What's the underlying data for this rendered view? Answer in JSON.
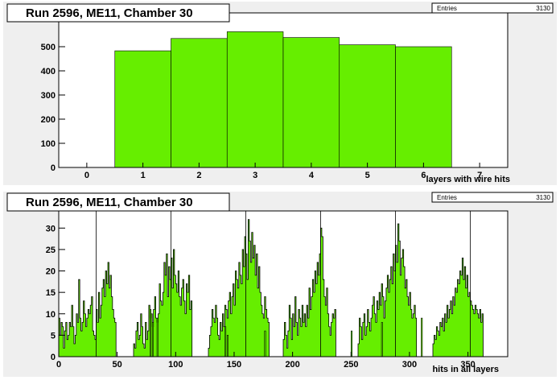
{
  "chart_data": [
    {
      "id": "top",
      "type": "bar",
      "title": "Run 2596, ME11, Chamber 30",
      "stats_label": "Entries",
      "stats_value": "3130",
      "xlabel": "layers with wire hits",
      "ylabel": "",
      "xlim": [
        -0.5,
        7.5
      ],
      "ylim": [
        0,
        640
      ],
      "xticks": [
        0,
        1,
        2,
        3,
        4,
        5,
        6,
        7
      ],
      "yticks": [
        0,
        100,
        200,
        300,
        400,
        500
      ],
      "bins": [
        {
          "x0": 0.5,
          "x1": 1.5,
          "value": 483
        },
        {
          "x0": 1.5,
          "x1": 2.5,
          "value": 534
        },
        {
          "x0": 2.5,
          "x1": 3.5,
          "value": 562
        },
        {
          "x0": 3.5,
          "x1": 4.5,
          "value": 538
        },
        {
          "x0": 4.5,
          "x1": 5.5,
          "value": 508
        },
        {
          "x0": 5.5,
          "x1": 6.5,
          "value": 500
        }
      ],
      "fill_color": "#66ee00"
    },
    {
      "id": "bottom",
      "type": "bar",
      "title": "Run 2596, ME11, Chamber 30",
      "stats_label": "Entries",
      "stats_value": "3130",
      "xlabel": "hits in all layers",
      "ylabel": "",
      "xlim": [
        0,
        384
      ],
      "ylim": [
        0,
        34
      ],
      "xticks": [
        0,
        50,
        100,
        150,
        200,
        250,
        300,
        350
      ],
      "yticks": [
        0,
        5,
        10,
        15,
        20,
        25,
        30
      ],
      "marker_lines_x": [
        32,
        96,
        160,
        224,
        288,
        352
      ],
      "fill_color": "#66ee00",
      "groups": [
        {
          "start": 0,
          "values": [
            9,
            5,
            8,
            7,
            2,
            6,
            8,
            4,
            5,
            8,
            7,
            12,
            7,
            3,
            5,
            10,
            8,
            18,
            9,
            6,
            8,
            13,
            10,
            7,
            9,
            11,
            10,
            12,
            14,
            6,
            5,
            4,
            11,
            8,
            15,
            9,
            12,
            16,
            18,
            14,
            20,
            17,
            22,
            16,
            19,
            14,
            11,
            9,
            8
          ]
        },
        {
          "start": 64,
          "values": [
            3,
            2,
            6,
            8,
            4,
            5,
            10,
            7,
            3,
            2,
            8,
            4,
            6,
            12,
            9,
            10,
            7,
            11,
            14,
            9,
            8,
            10,
            17,
            13,
            12,
            15,
            22,
            19,
            24,
            14,
            21,
            18,
            23,
            16,
            25,
            19,
            17,
            15,
            20,
            14,
            12,
            16,
            18,
            13,
            10,
            17,
            15,
            19,
            11,
            13
          ]
        },
        {
          "start": 128,
          "values": [
            2,
            5,
            7,
            11,
            9,
            8,
            12,
            9,
            5,
            4,
            8,
            6,
            10,
            7,
            12,
            11,
            9,
            13,
            15,
            10,
            14,
            17,
            12,
            20,
            18,
            16,
            22,
            19,
            17,
            25,
            21,
            28,
            24,
            18,
            32,
            27,
            22,
            29,
            23,
            26,
            19,
            24,
            16,
            21,
            15,
            12,
            10,
            9,
            14,
            11,
            9,
            8
          ]
        },
        {
          "start": 192,
          "values": [
            4,
            8,
            5,
            2,
            6,
            12,
            9,
            4,
            10,
            7,
            14,
            8,
            5,
            11,
            9,
            7,
            12,
            8,
            10,
            7,
            12,
            9,
            16,
            11,
            14,
            18,
            15,
            20,
            17,
            22,
            19,
            24,
            30,
            28,
            18,
            14,
            12,
            16,
            10,
            7,
            5,
            8,
            10,
            9,
            11
          ]
        },
        {
          "start": 256,
          "values": [
            3,
            9,
            7,
            4,
            8,
            10,
            5,
            7,
            11,
            8,
            6,
            9,
            12,
            14,
            10,
            8,
            13,
            11,
            15,
            12,
            17,
            14,
            9,
            13,
            16,
            19,
            15,
            18,
            21,
            17,
            24,
            20,
            26,
            22,
            31,
            27,
            19,
            23,
            25,
            21,
            16,
            18,
            14,
            12,
            15,
            11,
            9,
            10,
            12,
            9
          ]
        },
        {
          "start": 320,
          "values": [
            3,
            5,
            4,
            7,
            6,
            5,
            8,
            7,
            9,
            6,
            10,
            8,
            12,
            9,
            11,
            13,
            10,
            14,
            12,
            16,
            15,
            18,
            17,
            20,
            19,
            23,
            18,
            21,
            16,
            19,
            14,
            15,
            13,
            12,
            11,
            10,
            12,
            11,
            10,
            9,
            11,
            8,
            10
          ]
        }
      ],
      "isolated_bins": [
        {
          "x": 78,
          "value": 11
        },
        {
          "x": 80,
          "value": 8
        },
        {
          "x": 84,
          "value": 9
        },
        {
          "x": 142,
          "value": 7
        },
        {
          "x": 144,
          "value": 5
        },
        {
          "x": 176,
          "value": 6
        },
        {
          "x": 250,
          "value": 6
        },
        {
          "x": 276,
          "value": 8
        },
        {
          "x": 310,
          "value": 9
        }
      ]
    }
  ]
}
